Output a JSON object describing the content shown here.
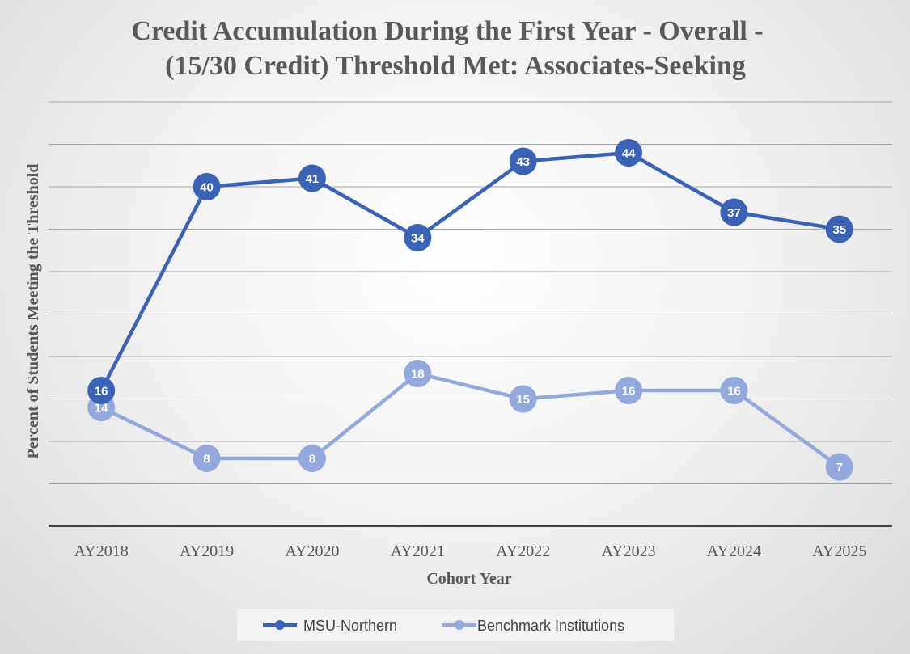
{
  "chart_data": {
    "type": "line",
    "title": [
      "Credit Accumulation During the First Year - Overall -",
      "(15/30 Credit) Threshold Met: Associates-Seeking"
    ],
    "xlabel": "Cohort Year",
    "ylabel": "Percent of Students Meeting the Threshold",
    "categories": [
      "AY2018",
      "AY2019",
      "AY2020",
      "AY2021",
      "AY2022",
      "AY2023",
      "AY2024",
      "AY2025"
    ],
    "ylim": [
      0,
      50
    ],
    "grid": true,
    "legend_position": "bottom",
    "series": [
      {
        "name": "MSU-Northern",
        "values": [
          16,
          40,
          41,
          34,
          43,
          44,
          37,
          35
        ],
        "color": "#3a63b5"
      },
      {
        "name": "Benchmark Institutions",
        "values": [
          14,
          8,
          8,
          18,
          15,
          16,
          16,
          7
        ],
        "color": "#93a8dc"
      }
    ]
  }
}
